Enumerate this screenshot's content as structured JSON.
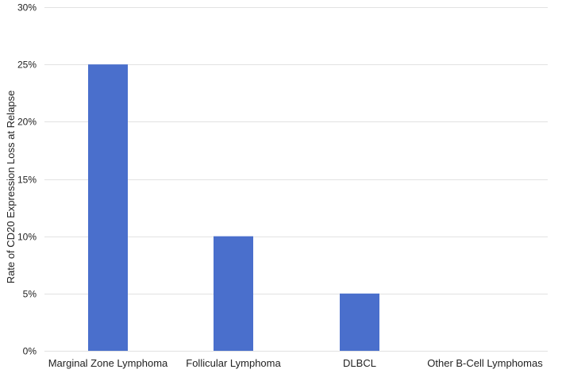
{
  "chart_data": {
    "type": "bar",
    "title": "",
    "xlabel": "",
    "ylabel": "Rate of CD20 Expression Loss at Relapse",
    "categories": [
      "Marginal Zone Lymphoma",
      "Follicular Lymphoma",
      "DLBCL",
      "Other B-Cell Lymphomas"
    ],
    "values": [
      25,
      10,
      5,
      0
    ],
    "ylim": [
      0,
      30
    ],
    "yticks": [
      0,
      5,
      10,
      15,
      20,
      25,
      30
    ],
    "ytick_labels": [
      "0%",
      "5%",
      "10%",
      "15%",
      "20%",
      "25%",
      "30%"
    ],
    "bar_color": "#4a6fcc",
    "grid_color": "#e2e2e2",
    "grid": true,
    "legend": "none"
  }
}
